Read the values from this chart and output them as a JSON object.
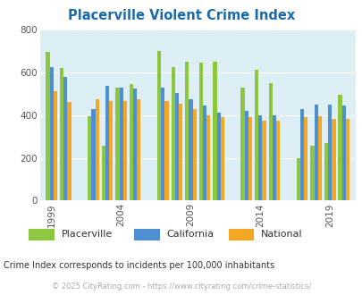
{
  "title": "Placerville Violent Crime Index",
  "title_color": "#1a6bad",
  "subtitle": "Crime Index corresponds to incidents per 100,000 inhabitants",
  "subtitle_color": "#333333",
  "footer": "© 2025 CityRating.com - https://www.cityrating.com/crime-statistics/",
  "footer_color": "#aaaaaa",
  "plot_bg_color": "#ddeef5",
  "years": [
    1999,
    2000,
    2002,
    2003,
    2004,
    2005,
    2007,
    2008,
    2009,
    2010,
    2011,
    2013,
    2014,
    2015,
    2017,
    2018,
    2019,
    2020
  ],
  "placerville": [
    695,
    620,
    395,
    255,
    530,
    545,
    700,
    625,
    650,
    645,
    650,
    530,
    610,
    550,
    200,
    255,
    270,
    495
  ],
  "california": [
    625,
    580,
    430,
    535,
    530,
    525,
    530,
    505,
    475,
    445,
    410,
    420,
    400,
    400,
    430,
    450,
    450,
    445
  ],
  "national": [
    510,
    460,
    475,
    465,
    465,
    475,
    465,
    455,
    430,
    400,
    390,
    390,
    375,
    375,
    390,
    395,
    380,
    380
  ],
  "colors": {
    "placerville": "#8dc63f",
    "california": "#4e8fd4",
    "national": "#f5a623"
  },
  "ylim": [
    0,
    800
  ],
  "yticks": [
    0,
    200,
    400,
    600,
    800
  ],
  "xtick_year_labels": [
    "1999",
    "2004",
    "2009",
    "2014",
    "2019"
  ],
  "xtick_years": [
    1999,
    2004,
    2009,
    2014,
    2019
  ],
  "bar_width": 0.27,
  "figsize": [
    4.06,
    3.3
  ],
  "dpi": 100
}
